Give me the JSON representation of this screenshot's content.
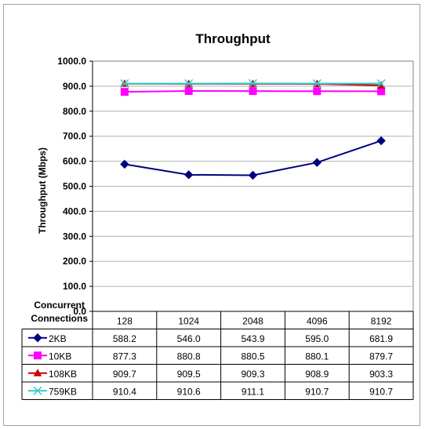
{
  "chart_data": {
    "type": "line",
    "title": "Throughput",
    "ylabel": "Throughput (Mbps)",
    "xlabel": "Concurrent Connections",
    "x_categories": [
      "128",
      "1024",
      "2048",
      "4096",
      "8192"
    ],
    "ylim": [
      0,
      1000
    ],
    "ytick_step": 100,
    "ytick_labels": [
      "0.0",
      "100.0",
      "200.0",
      "300.0",
      "400.0",
      "500.0",
      "600.0",
      "700.0",
      "800.0",
      "900.0",
      "1000.0"
    ],
    "grid": true,
    "legend": "data-table",
    "series": [
      {
        "name": "2KB",
        "color": "#000080",
        "marker": "diamond",
        "values": [
          588.2,
          546.0,
          543.9,
          595.0,
          681.9
        ],
        "labels": [
          "588.2",
          "546.0",
          "543.9",
          "595.0",
          "681.9"
        ]
      },
      {
        "name": "10KB",
        "color": "#ff00ff",
        "marker": "square",
        "values": [
          877.3,
          880.8,
          880.5,
          880.1,
          879.7
        ],
        "labels": [
          "877.3",
          "880.8",
          "880.5",
          "880.1",
          "879.7"
        ]
      },
      {
        "name": "108KB",
        "color": "#cc0000",
        "marker": "triangle",
        "values": [
          909.7,
          909.5,
          909.3,
          908.9,
          903.3
        ],
        "labels": [
          "909.7",
          "909.5",
          "909.3",
          "908.9",
          "903.3"
        ]
      },
      {
        "name": "759KB",
        "color": "#33cccc",
        "marker": "x",
        "values": [
          910.4,
          910.6,
          911.1,
          910.7,
          910.7
        ],
        "labels": [
          "910.4",
          "910.6",
          "911.1",
          "910.7",
          "910.7"
        ]
      }
    ]
  }
}
